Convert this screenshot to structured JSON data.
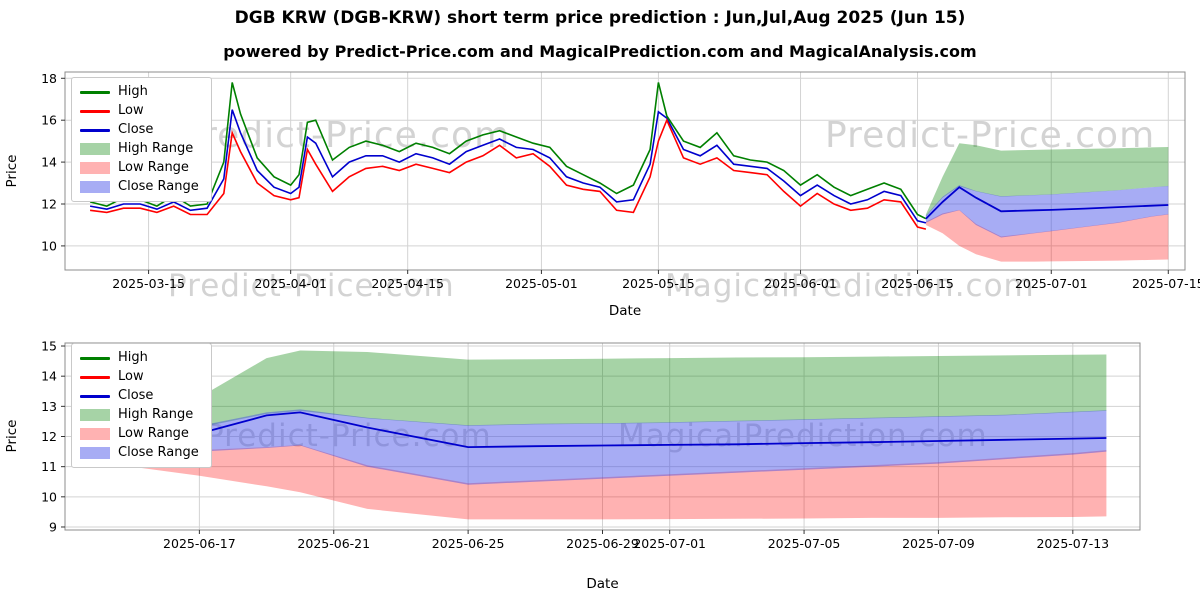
{
  "title": "DGB KRW (DGB-KRW) short term price prediction : Jun,Jul,Aug 2025 (Jun 15)",
  "subtitle": "powered by Predict-Price.com and MagicalPrediction.com and MagicalAnalysis.com",
  "watermarks": {
    "predict": "Predict-Price.com",
    "magical_prediction": "MagicalPrediction.com",
    "magical_analysis": "MagicalAnalysis.com"
  },
  "colors": {
    "high": "#008000",
    "low": "#ff0000",
    "close": "#0000cd",
    "high_range": "rgba(0,128,0,0.35)",
    "low_range": "rgba(255,0,0,0.30)",
    "close_range": "rgba(60,70,230,0.45)",
    "grid": "#d3d3d3",
    "spine": "#8c8c8c",
    "tick": "#333333"
  },
  "legend": [
    {
      "label": "High",
      "key": "high",
      "type": "line"
    },
    {
      "label": "Low",
      "key": "low",
      "type": "line"
    },
    {
      "label": "Close",
      "key": "close",
      "type": "line"
    },
    {
      "label": "High Range",
      "key": "high_range",
      "type": "patch"
    },
    {
      "label": "Low Range",
      "key": "low_range",
      "type": "patch"
    },
    {
      "label": "Close Range",
      "key": "close_range",
      "type": "patch"
    }
  ],
  "chart_data": [
    {
      "type": "line",
      "name": "history-and-forecast",
      "xlabel": "Date",
      "ylabel": "Price",
      "xlim": [
        "2025-03-05",
        "2025-07-17"
      ],
      "ylim": [
        8.85,
        18.3
      ],
      "yticks": [
        10,
        12,
        14,
        16,
        18
      ],
      "xticks": [
        "2025-03-15",
        "2025-04-01",
        "2025-04-15",
        "2025-05-01",
        "2025-05-15",
        "2025-06-01",
        "2025-06-15",
        "2025-07-01",
        "2025-07-15"
      ],
      "history": {
        "dates": [
          "2025-03-08",
          "2025-03-10",
          "2025-03-12",
          "2025-03-14",
          "2025-03-16",
          "2025-03-18",
          "2025-03-20",
          "2025-03-22",
          "2025-03-24",
          "2025-03-25",
          "2025-03-26",
          "2025-03-28",
          "2025-03-30",
          "2025-04-01",
          "2025-04-02",
          "2025-04-03",
          "2025-04-04",
          "2025-04-06",
          "2025-04-08",
          "2025-04-10",
          "2025-04-12",
          "2025-04-14",
          "2025-04-16",
          "2025-04-18",
          "2025-04-20",
          "2025-04-22",
          "2025-04-24",
          "2025-04-26",
          "2025-04-28",
          "2025-04-30",
          "2025-05-02",
          "2025-05-04",
          "2025-05-06",
          "2025-05-08",
          "2025-05-10",
          "2025-05-12",
          "2025-05-14",
          "2025-05-15",
          "2025-05-16",
          "2025-05-18",
          "2025-05-20",
          "2025-05-22",
          "2025-05-24",
          "2025-05-26",
          "2025-05-28",
          "2025-05-30",
          "2025-06-01",
          "2025-06-03",
          "2025-06-05",
          "2025-06-07",
          "2025-06-09",
          "2025-06-11",
          "2025-06-13",
          "2025-06-15",
          "2025-06-16"
        ],
        "high": [
          12.1,
          11.9,
          12.3,
          12.2,
          11.9,
          12.4,
          11.9,
          12.0,
          14.0,
          17.8,
          16.3,
          14.2,
          13.3,
          12.9,
          13.4,
          15.9,
          16.0,
          14.1,
          14.7,
          15.0,
          14.8,
          14.5,
          14.9,
          14.7,
          14.4,
          15.0,
          15.3,
          15.5,
          15.2,
          14.9,
          14.7,
          13.8,
          13.4,
          13.0,
          12.5,
          12.9,
          14.6,
          17.8,
          16.2,
          15.0,
          14.7,
          15.4,
          14.3,
          14.1,
          14.0,
          13.6,
          12.9,
          13.4,
          12.8,
          12.4,
          12.7,
          13.0,
          12.7,
          11.5,
          11.3
        ],
        "low": [
          11.7,
          11.6,
          11.8,
          11.8,
          11.6,
          11.9,
          11.5,
          11.5,
          12.5,
          15.4,
          14.5,
          13.0,
          12.4,
          12.2,
          12.3,
          14.6,
          13.9,
          12.6,
          13.3,
          13.7,
          13.8,
          13.6,
          13.9,
          13.7,
          13.5,
          14.0,
          14.3,
          14.8,
          14.2,
          14.4,
          13.8,
          12.9,
          12.7,
          12.6,
          11.7,
          11.6,
          13.3,
          15.0,
          16.0,
          14.2,
          13.9,
          14.2,
          13.6,
          13.5,
          13.4,
          12.6,
          11.9,
          12.5,
          12.0,
          11.7,
          11.8,
          12.2,
          12.1,
          10.9,
          10.8
        ],
        "close": [
          11.9,
          11.75,
          12.0,
          12.0,
          11.75,
          12.1,
          11.7,
          11.8,
          13.2,
          16.5,
          15.4,
          13.6,
          12.8,
          12.5,
          12.8,
          15.2,
          14.9,
          13.3,
          14.0,
          14.3,
          14.3,
          14.0,
          14.4,
          14.2,
          13.9,
          14.5,
          14.8,
          15.1,
          14.7,
          14.6,
          14.2,
          13.3,
          13.0,
          12.8,
          12.1,
          12.2,
          13.9,
          16.4,
          16.1,
          14.6,
          14.3,
          14.8,
          13.9,
          13.8,
          13.7,
          13.1,
          12.4,
          12.9,
          12.4,
          12.0,
          12.2,
          12.6,
          12.4,
          11.2,
          11.1
        ]
      },
      "forecast": {
        "dates": [
          "2025-06-16",
          "2025-06-18",
          "2025-06-20",
          "2025-06-22",
          "2025-06-25",
          "2025-06-29",
          "2025-07-01",
          "2025-07-05",
          "2025-07-09",
          "2025-07-13",
          "2025-07-15"
        ],
        "close": [
          11.3,
          12.1,
          12.8,
          12.3,
          11.65,
          11.7,
          11.72,
          11.78,
          11.85,
          11.92,
          11.95
        ],
        "high_range": {
          "upper": [
            11.5,
            13.3,
            14.9,
            14.8,
            14.55,
            14.58,
            14.6,
            14.63,
            14.66,
            14.7,
            14.72
          ],
          "lower": [
            11.4,
            12.3,
            12.85,
            12.6,
            12.35,
            12.42,
            12.45,
            12.55,
            12.65,
            12.8,
            12.85
          ]
        },
        "close_range": {
          "upper": [
            11.45,
            12.35,
            12.9,
            12.62,
            12.37,
            12.43,
            12.46,
            12.56,
            12.66,
            12.8,
            12.86
          ],
          "lower": [
            11.1,
            11.5,
            11.7,
            11.0,
            10.4,
            10.6,
            10.7,
            10.9,
            11.1,
            11.4,
            11.5
          ]
        },
        "low_range": {
          "upper": [
            11.15,
            11.55,
            11.72,
            11.05,
            10.45,
            10.62,
            10.72,
            10.92,
            11.12,
            11.42,
            11.52
          ],
          "lower": [
            11.0,
            10.6,
            10.0,
            9.6,
            9.25,
            9.25,
            9.26,
            9.28,
            9.3,
            9.33,
            9.35
          ]
        }
      }
    },
    {
      "type": "line",
      "name": "forecast-detail",
      "xlabel": "Date",
      "ylabel": "Price",
      "xlim": [
        "2025-06-13",
        "2025-07-15"
      ],
      "ylim": [
        8.9,
        15.1
      ],
      "yticks": [
        9,
        10,
        11,
        12,
        13,
        14,
        15
      ],
      "xticks": [
        "2025-06-17",
        "2025-06-21",
        "2025-06-25",
        "2025-06-29",
        "2025-07-01",
        "2025-07-05",
        "2025-07-09",
        "2025-07-13"
      ],
      "history": null,
      "forecast": {
        "dates": [
          "2025-06-15",
          "2025-06-17",
          "2025-06-19",
          "2025-06-20",
          "2025-06-22",
          "2025-06-25",
          "2025-06-27",
          "2025-06-29",
          "2025-07-01",
          "2025-07-03",
          "2025-07-05",
          "2025-07-07",
          "2025-07-09",
          "2025-07-11",
          "2025-07-13",
          "2025-07-14"
        ],
        "close": [
          11.15,
          12.1,
          12.7,
          12.8,
          12.3,
          11.65,
          11.68,
          11.7,
          11.72,
          11.74,
          11.78,
          11.81,
          11.85,
          11.89,
          11.93,
          11.95
        ],
        "high_range": {
          "upper": [
            11.4,
            13.3,
            14.6,
            14.85,
            14.8,
            14.55,
            14.56,
            14.58,
            14.6,
            14.62,
            14.63,
            14.65,
            14.67,
            14.69,
            14.71,
            14.72
          ],
          "lower": [
            11.3,
            12.3,
            12.75,
            12.85,
            12.6,
            12.35,
            12.4,
            12.42,
            12.45,
            12.5,
            12.55,
            12.6,
            12.65,
            12.7,
            12.8,
            12.85
          ]
        },
        "close_range": {
          "upper": [
            11.35,
            12.35,
            12.8,
            12.9,
            12.62,
            12.37,
            12.42,
            12.44,
            12.47,
            12.52,
            12.57,
            12.62,
            12.67,
            12.72,
            12.82,
            12.87
          ],
          "lower": [
            11.05,
            11.5,
            11.62,
            11.7,
            11.0,
            10.4,
            10.5,
            10.6,
            10.7,
            10.8,
            10.9,
            11.0,
            11.1,
            11.25,
            11.4,
            11.5
          ]
        },
        "low_range": {
          "upper": [
            11.1,
            11.55,
            11.65,
            11.72,
            11.05,
            10.45,
            10.55,
            10.65,
            10.75,
            10.85,
            10.95,
            11.05,
            11.15,
            11.3,
            11.45,
            11.55
          ],
          "lower": [
            11.0,
            10.7,
            10.35,
            10.15,
            9.6,
            9.25,
            9.25,
            9.25,
            9.26,
            9.27,
            9.28,
            9.3,
            9.3,
            9.32,
            9.33,
            9.35
          ]
        }
      }
    }
  ]
}
